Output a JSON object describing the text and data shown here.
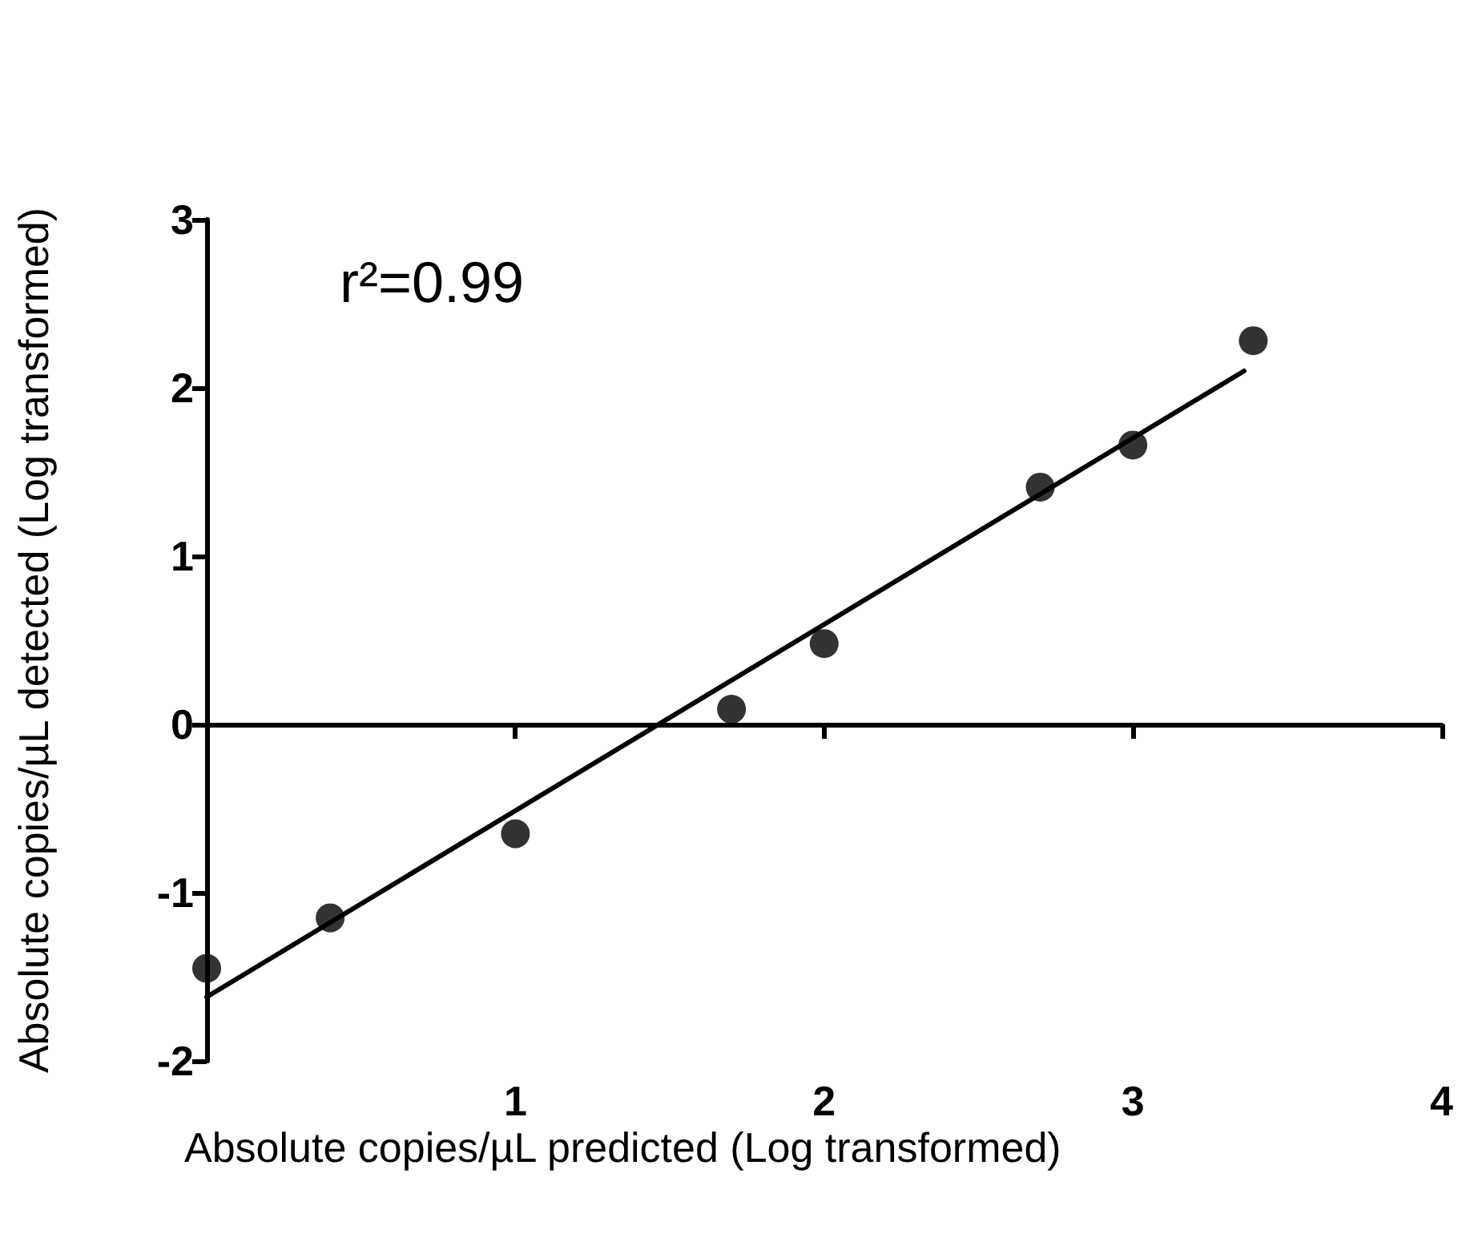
{
  "chart_data": {
    "type": "scatter",
    "xlabel": "Absolute copies/µL predicted (Log transformed)",
    "ylabel": "Absolute copies/µL detected (Log transformed)",
    "annotations": [
      "r²=0.99"
    ],
    "xlim": [
      0,
      4
    ],
    "xticks": [
      1,
      2,
      3,
      4
    ],
    "ylim": [
      -2,
      3
    ],
    "yticks": [
      -2,
      -1,
      0,
      1,
      2,
      3
    ],
    "series": [
      {
        "color": "#000000",
        "marker": "circle",
        "x": [
          0,
          0.4,
          1.0,
          1.7,
          2.0,
          2.7,
          3.0,
          3.39
        ],
        "values": [
          -1.45,
          -1.15,
          -0.65,
          0.09,
          0.48,
          1.41,
          1.66,
          2.28
        ]
      },
      {
        "type": "line",
        "color": "#000000",
        "marker": "none",
        "line_style": "solid",
        "x": [
          0,
          3.36
        ],
        "values": [
          -1.62,
          2.1
        ]
      }
    ]
  }
}
